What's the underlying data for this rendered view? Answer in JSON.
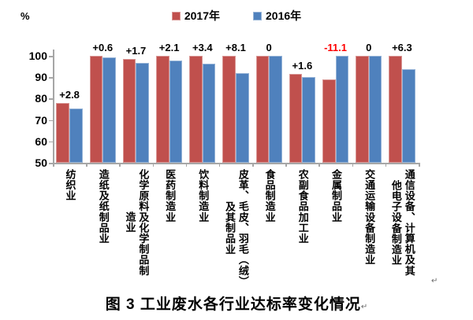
{
  "legend": {
    "items": [
      {
        "label": "2017年",
        "color": "#C0504D",
        "border": "#D99694"
      },
      {
        "label": "2016年",
        "color": "#4F81BD",
        "border": "#95B3D7"
      }
    ]
  },
  "caption": {
    "text": "图 3  工业废水各行业达标率变化情况",
    "return_mark": "↵"
  },
  "return_marks": {
    "after_chart": "↵"
  },
  "chart_data": {
    "type": "bar",
    "title": "图 3 工业废水各行业达标率变化情况",
    "ylabel": "%",
    "xlabel": "",
    "ylim": [
      50,
      100
    ],
    "yticks": [
      50,
      60,
      70,
      80,
      90,
      100
    ],
    "grid": false,
    "legend_position": "top",
    "axis_color": "#A6A6A6",
    "text_color": "#000000",
    "categories": [
      "纺织业",
      "造纸及纸制品业",
      "化学原料及化学制品制造业",
      "医药制造业",
      "饮料制造业",
      "皮革、毛皮、羽毛（绒）及其制品业",
      "食品制造业",
      "农副食品加工业",
      "金属制品业",
      "交通运输设备制造业",
      "通信设备、计算机及其他电子设备制造业"
    ],
    "category_lines": [
      [
        "纺织业"
      ],
      [
        "造纸及纸制品业"
      ],
      [
        "化学原料及化学制品制",
        "造业"
      ],
      [
        "医药制造业"
      ],
      [
        "饮料制造业"
      ],
      [
        "皮革、毛皮、羽毛（绒）",
        "及其制品业"
      ],
      [
        "食品制造业"
      ],
      [
        "农副食品加工业"
      ],
      [
        "金属制品业"
      ],
      [
        "交通运输设备制造业"
      ],
      [
        "通信设备、计算机及其",
        "他电子设备制造业"
      ]
    ],
    "series": [
      {
        "name": "2017年",
        "color": "#C0504D",
        "border_color": "#D99694",
        "values": [
          78.0,
          99.9,
          98.5,
          99.9,
          99.9,
          99.9,
          100,
          91.6,
          88.9,
          100,
          100
        ]
      },
      {
        "name": "2016年",
        "color": "#4F81BD",
        "border_color": "#95B3D7",
        "values": [
          75.2,
          99.3,
          96.8,
          97.8,
          96.5,
          91.8,
          100,
          90.0,
          100,
          100,
          93.7
        ]
      }
    ],
    "diff_labels": [
      {
        "text": "+2.8",
        "color": "#000000"
      },
      {
        "text": "+0.6",
        "color": "#000000"
      },
      {
        "text": "+1.7",
        "color": "#000000"
      },
      {
        "text": "+2.1",
        "color": "#000000"
      },
      {
        "text": "+3.4",
        "color": "#000000"
      },
      {
        "text": "+8.1",
        "color": "#000000"
      },
      {
        "text": "0",
        "color": "#000000"
      },
      {
        "text": "+1.6",
        "color": "#000000"
      },
      {
        "text": "-11.1",
        "color": "#FF0000"
      },
      {
        "text": "0",
        "color": "#000000"
      },
      {
        "text": "+6.3",
        "color": "#000000"
      }
    ]
  }
}
